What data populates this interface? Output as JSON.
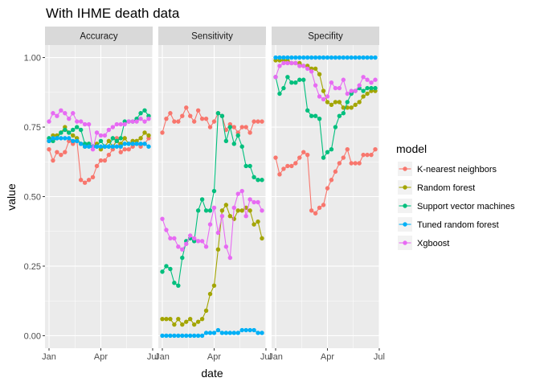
{
  "chart_data": {
    "type": "line",
    "title": "With IHME death data",
    "xlabel": "date",
    "ylabel": "value",
    "ylim": [
      0,
      1
    ],
    "y_ticks": [
      "0.00",
      "0.25",
      "0.50",
      "0.75",
      "1.00"
    ],
    "x_ticks": [
      "Jan",
      "Apr",
      "Jul"
    ],
    "grid": true,
    "legend": {
      "title": "model",
      "placement": "right"
    },
    "panels": [
      "Accuracy",
      "Sensitivity",
      "Specifity"
    ],
    "x": [
      "Jan 1",
      "Jan 8",
      "Jan 15",
      "Jan 22",
      "Jan 29",
      "Feb 5",
      "Feb 12",
      "Feb 19",
      "Feb 26",
      "Mar 5",
      "Mar 12",
      "Mar 19",
      "Mar 26",
      "Apr 2",
      "Apr 9",
      "Apr 16",
      "Apr 23",
      "Apr 30",
      "May 7",
      "May 14",
      "May 21",
      "May 28",
      "Jun 4",
      "Jun 11",
      "Jun 18",
      "Jun 25"
    ],
    "series": [
      {
        "name": "K-nearest neighbors",
        "color": "#F8766D",
        "values": {
          "Accuracy": [
            0.67,
            0.63,
            0.66,
            0.65,
            0.66,
            0.7,
            0.69,
            0.7,
            0.56,
            0.55,
            0.56,
            0.57,
            0.61,
            0.63,
            0.63,
            0.65,
            0.67,
            0.71,
            0.66,
            0.67,
            0.67,
            0.68,
            0.69,
            0.68,
            0.69,
            0.71
          ],
          "Sensitivity": [
            0.73,
            0.78,
            0.8,
            0.77,
            0.77,
            0.79,
            0.82,
            0.79,
            0.77,
            0.81,
            0.78,
            0.78,
            0.75,
            0.77,
            0.8,
            0.79,
            0.74,
            0.76,
            0.75,
            0.73,
            0.75,
            0.75,
            0.73,
            0.77,
            0.77,
            0.77
          ],
          "Specifity": [
            0.64,
            0.58,
            0.6,
            0.61,
            0.61,
            0.62,
            0.64,
            0.66,
            0.65,
            0.45,
            0.44,
            0.46,
            0.47,
            0.53,
            0.56,
            0.59,
            0.62,
            0.64,
            0.67,
            0.62,
            0.62,
            0.62,
            0.65,
            0.65,
            0.65,
            0.67
          ]
        }
      },
      {
        "name": "Random forest",
        "color": "#A3A500",
        "values": {
          "Accuracy": [
            0.7,
            0.72,
            0.72,
            0.73,
            0.75,
            0.73,
            0.72,
            0.71,
            0.69,
            0.68,
            0.69,
            0.68,
            0.69,
            0.67,
            0.68,
            0.7,
            0.68,
            0.7,
            0.69,
            0.71,
            0.69,
            0.7,
            0.7,
            0.71,
            0.73,
            0.72
          ],
          "Sensitivity": [
            0.06,
            0.06,
            0.06,
            0.04,
            0.06,
            0.04,
            0.05,
            0.06,
            0.04,
            0.05,
            0.06,
            0.09,
            0.15,
            0.18,
            0.31,
            0.45,
            0.47,
            0.43,
            0.42,
            0.45,
            0.45,
            0.46,
            0.45,
            0.4,
            0.41,
            0.35
          ],
          "Specifity": [
            0.99,
            0.99,
            0.99,
            0.99,
            0.98,
            0.98,
            0.98,
            0.97,
            0.97,
            0.96,
            0.96,
            0.94,
            0.88,
            0.84,
            0.83,
            0.84,
            0.84,
            0.82,
            0.82,
            0.82,
            0.83,
            0.84,
            0.86,
            0.87,
            0.88,
            0.88
          ]
        }
      },
      {
        "name": "Support vector machines",
        "color": "#00BF7D",
        "values": {
          "Accuracy": [
            0.71,
            0.7,
            0.71,
            0.73,
            0.74,
            0.73,
            0.74,
            0.75,
            0.74,
            0.69,
            0.69,
            0.68,
            0.68,
            0.7,
            0.68,
            0.68,
            0.71,
            0.7,
            0.71,
            0.77,
            0.77,
            0.77,
            0.78,
            0.8,
            0.81,
            0.79
          ],
          "Sensitivity": [
            0.23,
            0.25,
            0.24,
            0.19,
            0.18,
            0.28,
            0.34,
            0.35,
            0.34,
            0.45,
            0.49,
            0.45,
            0.45,
            0.52,
            0.8,
            0.79,
            0.7,
            0.75,
            0.69,
            0.72,
            0.68,
            0.61,
            0.61,
            0.57,
            0.56,
            0.56
          ],
          "Specifity": [
            0.93,
            0.87,
            0.89,
            0.93,
            0.91,
            0.91,
            0.92,
            0.92,
            0.81,
            0.79,
            0.79,
            0.78,
            0.64,
            0.66,
            0.67,
            0.75,
            0.79,
            0.8,
            0.84,
            0.87,
            0.88,
            0.89,
            0.88,
            0.89,
            0.89,
            0.89
          ]
        }
      },
      {
        "name": "Tuned random forest",
        "color": "#00B0F6",
        "values": {
          "Accuracy": [
            0.7,
            0.71,
            0.71,
            0.71,
            0.71,
            0.71,
            0.7,
            0.7,
            0.69,
            0.68,
            0.68,
            0.68,
            0.68,
            0.68,
            0.68,
            0.68,
            0.68,
            0.68,
            0.68,
            0.69,
            0.69,
            0.69,
            0.69,
            0.69,
            0.69,
            0.68
          ],
          "Sensitivity": [
            0.0,
            0.0,
            0.0,
            0.0,
            0.0,
            0.0,
            0.0,
            0.0,
            0.0,
            0.0,
            0.0,
            0.01,
            0.01,
            0.01,
            0.02,
            0.01,
            0.01,
            0.01,
            0.01,
            0.01,
            0.02,
            0.02,
            0.02,
            0.02,
            0.01,
            0.01
          ],
          "Specifity": [
            1.0,
            1.0,
            1.0,
            1.0,
            1.0,
            1.0,
            1.0,
            1.0,
            1.0,
            1.0,
            1.0,
            1.0,
            1.0,
            1.0,
            1.0,
            1.0,
            1.0,
            1.0,
            1.0,
            1.0,
            1.0,
            1.0,
            1.0,
            1.0,
            1.0,
            1.0
          ]
        }
      },
      {
        "name": "Xgboost",
        "color": "#E76BF3",
        "values": {
          "Accuracy": [
            0.77,
            0.8,
            0.79,
            0.81,
            0.8,
            0.78,
            0.8,
            0.77,
            0.77,
            0.76,
            0.76,
            0.67,
            0.73,
            0.72,
            0.72,
            0.74,
            0.75,
            0.76,
            0.76,
            0.76,
            0.77,
            0.77,
            0.77,
            0.78,
            0.77,
            0.78
          ],
          "Sensitivity": [
            0.42,
            0.38,
            0.35,
            0.35,
            0.32,
            0.31,
            0.33,
            0.36,
            0.35,
            0.34,
            0.34,
            0.32,
            0.4,
            0.46,
            0.37,
            0.43,
            0.32,
            0.28,
            0.46,
            0.51,
            0.52,
            0.43,
            0.49,
            0.48,
            0.48,
            0.45
          ],
          "Specifity": [
            0.93,
            0.97,
            0.98,
            0.98,
            0.98,
            0.98,
            0.97,
            0.97,
            0.96,
            0.95,
            0.9,
            0.86,
            0.85,
            0.86,
            0.91,
            0.89,
            0.89,
            0.92,
            0.87,
            0.88,
            0.88,
            0.9,
            0.93,
            0.92,
            0.91,
            0.92
          ]
        }
      }
    ]
  }
}
